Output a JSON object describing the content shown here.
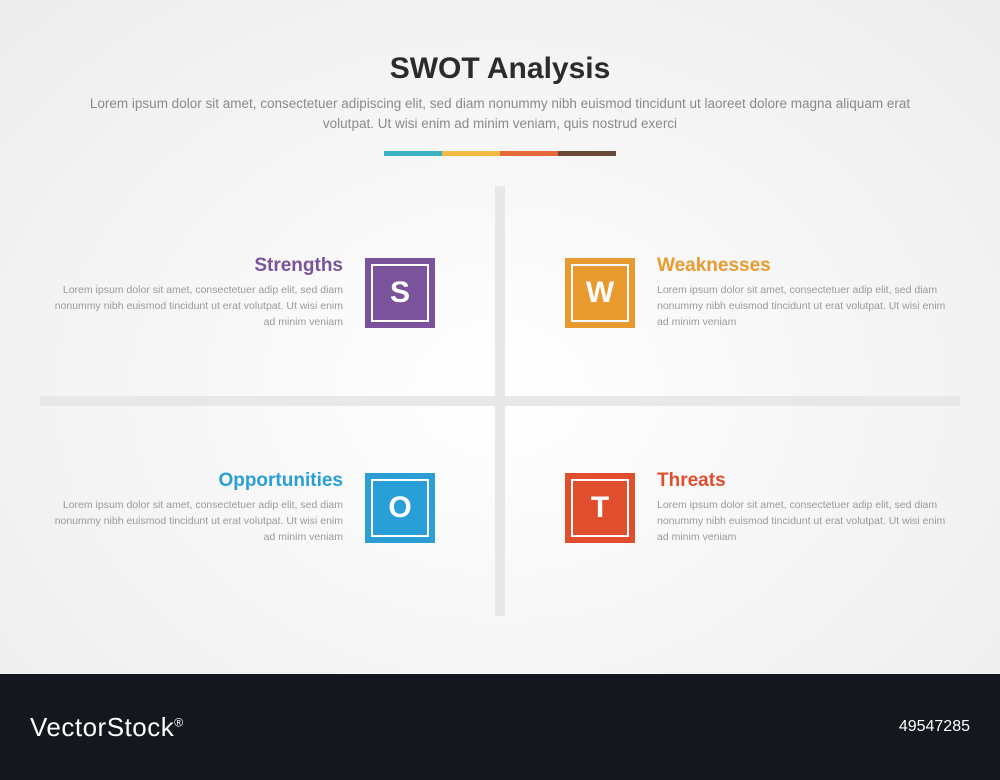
{
  "header": {
    "title": "SWOT Analysis",
    "subtitle": "Lorem ipsum dolor sit amet, consectetuer adipiscing elit, sed diam nonummy nibh euismod tincidunt ut laoreet dolore magna aliquam erat volutpat. Ut wisi enim ad minim veniam, quis nostrud exerci"
  },
  "color_bar": {
    "segments": [
      "#3bb0bf",
      "#f2b944",
      "#e56a3a",
      "#6b4a3a"
    ]
  },
  "cross_color": "#e8e8e8",
  "quadrants": {
    "strengths": {
      "label": "Strengths",
      "letter": "S",
      "color": "#7a539b",
      "desc": "Lorem ipsum dolor sit amet, consectetuer adip elit, sed diam nonummy nibh euismod tincidunt ut erat volutpat. Ut wisi enim ad minim veniam"
    },
    "weaknesses": {
      "label": "Weaknesses",
      "letter": "W",
      "color": "#e89a2e",
      "desc": "Lorem ipsum dolor sit amet, consectetuer adip elit, sed diam nonummy nibh euismod tincidunt ut erat volutpat. Ut wisi enim ad minim veniam"
    },
    "opportunities": {
      "label": "Opportunities",
      "letter": "O",
      "color": "#2a9fd6",
      "desc": "Lorem ipsum dolor sit amet, consectetuer adip elit, sed diam nonummy nibh euismod tincidunt ut erat volutpat. Ut wisi enim ad minim veniam"
    },
    "threats": {
      "label": "Threats",
      "letter": "T",
      "color": "#e04e2e",
      "desc": "Lorem ipsum dolor sit amet, consectetuer adip elit, sed diam nonummy nibh euismod tincidunt ut erat volutpat. Ut wisi enim ad minim veniam"
    }
  },
  "footer": {
    "brand": "VectorStock",
    "reg": "®",
    "id": "49547285"
  }
}
